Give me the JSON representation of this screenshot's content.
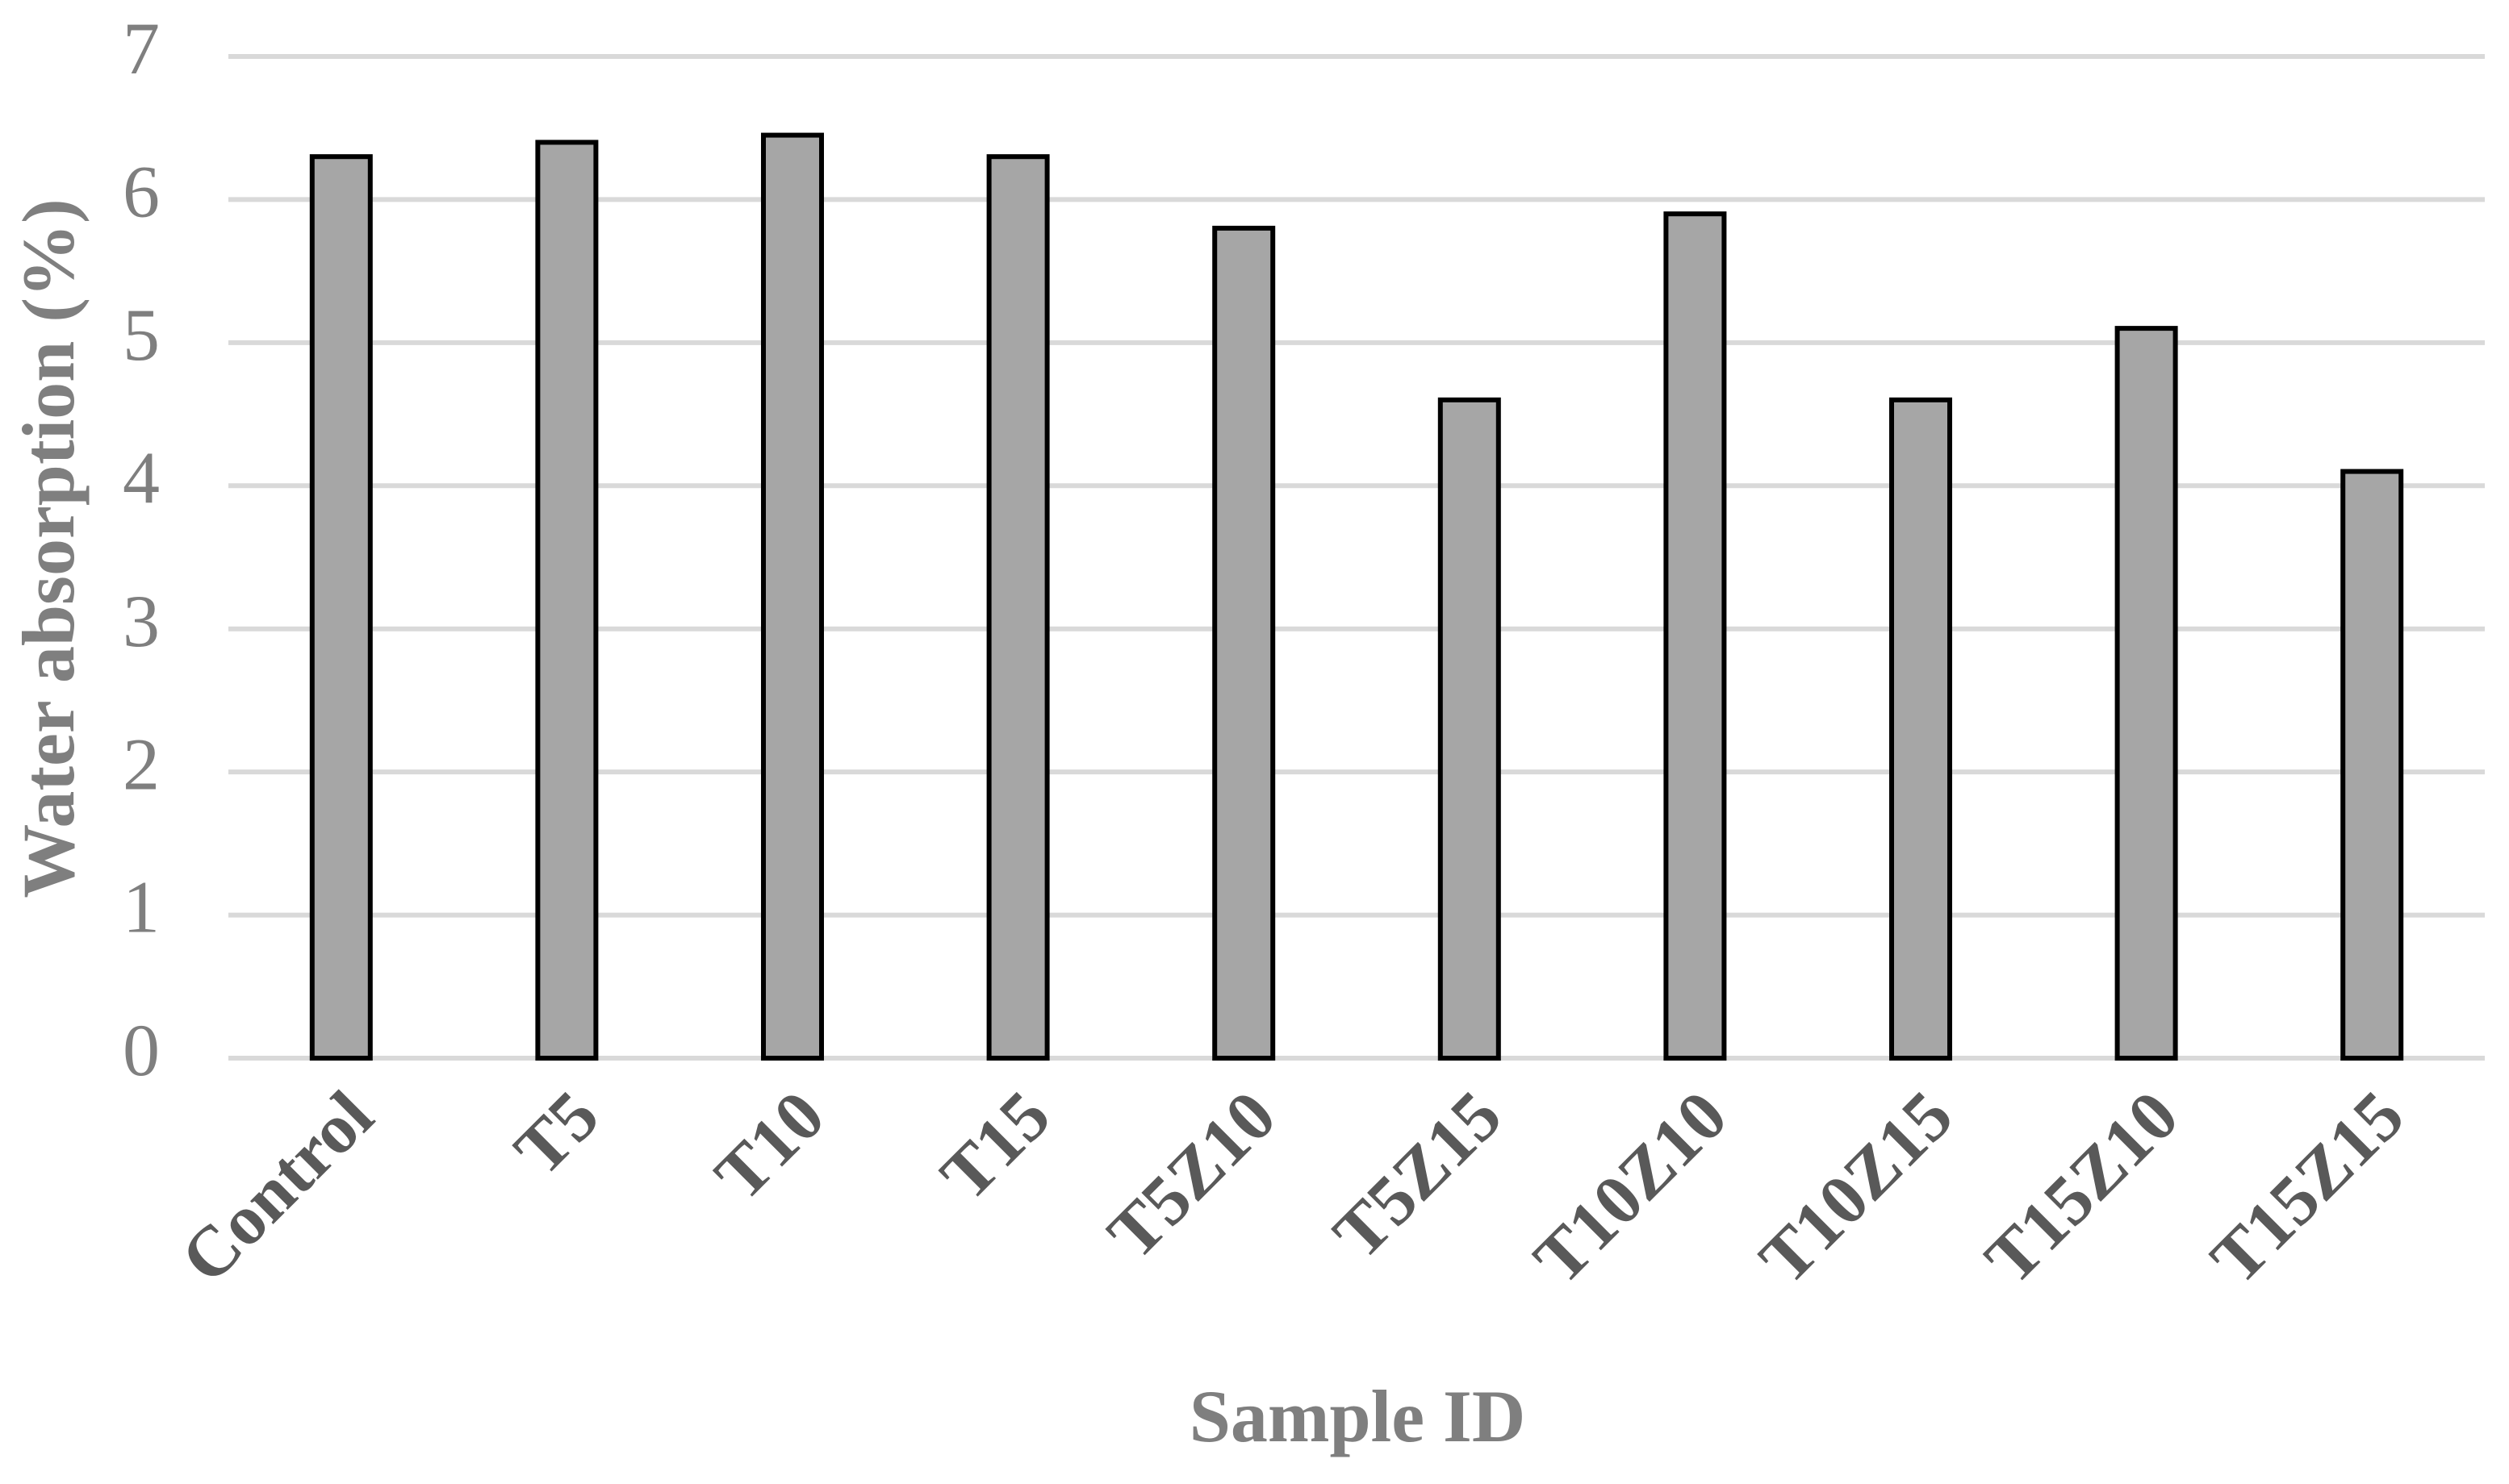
{
  "chart_data": {
    "type": "bar",
    "x_label": "Sample ID",
    "y_label": "Water absorption (%)",
    "categories": [
      "Control",
      "T5",
      "T10",
      "T15",
      "T5Z10",
      "T5Z15",
      "T10Z10",
      "T10Z15",
      "T15Z10",
      "T15Z15"
    ],
    "values": [
      6.3,
      6.4,
      6.45,
      6.3,
      5.8,
      4.6,
      5.9,
      4.6,
      5.1,
      4.1
    ],
    "color": "#a6a6a6",
    "ylim": [
      0,
      7
    ],
    "yticks": [
      0,
      1,
      2,
      3,
      4,
      5,
      6,
      7
    ],
    "grid": true
  }
}
